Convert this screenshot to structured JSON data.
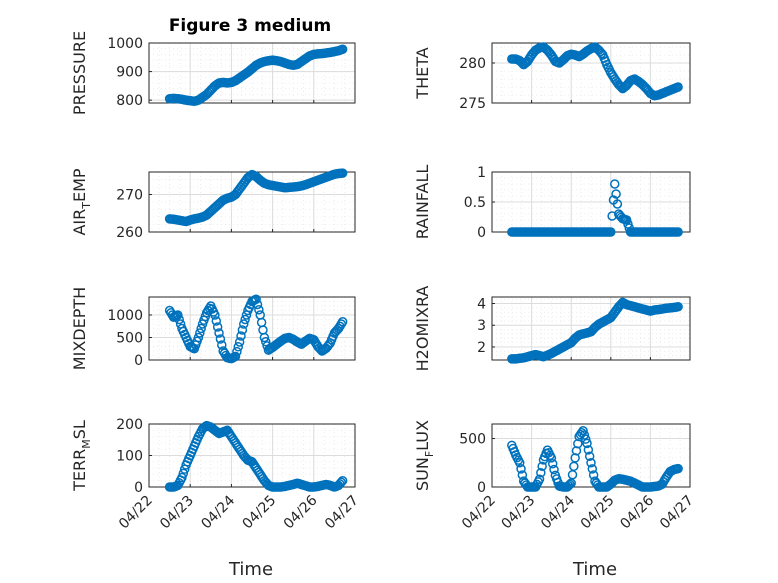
{
  "figure": {
    "title": "Figure 3 medium",
    "xlabel": "Time",
    "x_ticks": [
      "04/22",
      "04/23",
      "04/24",
      "04/25",
      "04/26",
      "04/27"
    ],
    "marker_color": "#0072BD"
  },
  "chart_data": [
    {
      "type": "scatter",
      "id": "pressure",
      "ylabel": "PRESSURE",
      "ylabel_parts": [
        {
          "t": "PRESSURE",
          "sub": false
        }
      ],
      "ylim": [
        790,
        1000
      ],
      "yticks": [
        800,
        900,
        1000
      ],
      "x": [
        0.5,
        0.6,
        0.7,
        0.8,
        0.9,
        1.0,
        1.1,
        1.2,
        1.3,
        1.4,
        1.5,
        1.6,
        1.7,
        1.8,
        1.9,
        2.0,
        2.1,
        2.2,
        2.3,
        2.4,
        2.5,
        2.6,
        2.7,
        2.8,
        2.9,
        3.0,
        3.1,
        3.2,
        3.3,
        3.4,
        3.5,
        3.6,
        3.7,
        3.8,
        3.9,
        4.0,
        4.1,
        4.2,
        4.3,
        4.4,
        4.5,
        4.6,
        4.7
      ],
      "y": [
        805,
        806,
        805,
        803,
        800,
        798,
        796,
        800,
        810,
        820,
        835,
        850,
        860,
        862,
        860,
        862,
        868,
        878,
        888,
        898,
        910,
        922,
        930,
        935,
        938,
        940,
        938,
        935,
        930,
        925,
        922,
        925,
        935,
        945,
        955,
        960,
        962,
        963,
        965,
        967,
        970,
        973,
        978
      ]
    },
    {
      "type": "scatter",
      "id": "theta",
      "ylabel": "THETA",
      "ylabel_parts": [
        {
          "t": "THETA",
          "sub": false
        }
      ],
      "ylim": [
        275,
        282.5
      ],
      "yticks": [
        275,
        280
      ],
      "x": [
        0.5,
        0.6,
        0.7,
        0.8,
        0.9,
        1.0,
        1.1,
        1.2,
        1.3,
        1.4,
        1.5,
        1.6,
        1.7,
        1.8,
        1.9,
        2.0,
        2.1,
        2.2,
        2.3,
        2.4,
        2.5,
        2.6,
        2.7,
        2.8,
        2.9,
        3.0,
        3.1,
        3.2,
        3.3,
        3.4,
        3.5,
        3.6,
        3.7,
        3.8,
        3.9,
        4.0,
        4.1,
        4.2,
        4.3,
        4.4,
        4.5,
        4.6,
        4.7
      ],
      "y": [
        280.5,
        280.5,
        280.3,
        279.8,
        280.2,
        281.0,
        281.6,
        281.9,
        282.0,
        281.6,
        281.0,
        280.2,
        280.0,
        280.4,
        280.9,
        281.1,
        281.0,
        280.8,
        281.1,
        281.5,
        281.8,
        282.0,
        281.6,
        281.0,
        279.8,
        278.8,
        278.0,
        277.3,
        276.8,
        277.2,
        277.8,
        278.0,
        277.7,
        277.3,
        276.8,
        276.2,
        275.9,
        276.0,
        276.2,
        276.4,
        276.6,
        276.8,
        277.0
      ]
    },
    {
      "type": "scatter",
      "id": "airtemp",
      "ylabel": "AIR_TEMP",
      "ylabel_parts": [
        {
          "t": "AIR",
          "sub": false
        },
        {
          "t": "T",
          "sub": true
        },
        {
          "t": "EMP",
          "sub": false
        }
      ],
      "ylim": [
        260,
        276
      ],
      "yticks": [
        260,
        270
      ],
      "x": [
        0.5,
        0.6,
        0.7,
        0.8,
        0.9,
        1.0,
        1.1,
        1.2,
        1.3,
        1.4,
        1.5,
        1.6,
        1.7,
        1.8,
        1.9,
        2.0,
        2.1,
        2.2,
        2.3,
        2.4,
        2.5,
        2.6,
        2.7,
        2.8,
        2.9,
        3.0,
        3.1,
        3.2,
        3.3,
        3.4,
        3.5,
        3.6,
        3.7,
        3.8,
        3.9,
        4.0,
        4.1,
        4.2,
        4.3,
        4.4,
        4.5,
        4.6,
        4.7
      ],
      "y": [
        263.5,
        263.4,
        263.2,
        263.0,
        262.8,
        263.2,
        263.5,
        263.7,
        264.0,
        264.5,
        265.5,
        266.5,
        267.5,
        268.5,
        269.0,
        269.3,
        270.0,
        271.5,
        273.0,
        274.5,
        275.3,
        274.8,
        273.8,
        273.0,
        272.6,
        272.4,
        272.2,
        272.0,
        271.8,
        271.9,
        272.0,
        272.1,
        272.3,
        272.6,
        273.0,
        273.4,
        273.8,
        274.2,
        274.6,
        275.0,
        275.4,
        275.6,
        275.7
      ]
    },
    {
      "type": "scatter",
      "id": "rainfall",
      "ylabel": "RAINFALL",
      "ylabel_parts": [
        {
          "t": "RAINFALL",
          "sub": false
        }
      ],
      "ylim": [
        0,
        1
      ],
      "yticks": [
        0,
        0.5,
        1
      ],
      "ytick_labels": [
        "0",
        "0.5",
        "1"
      ],
      "x": [
        0.5,
        0.6,
        0.7,
        0.8,
        0.9,
        1.0,
        1.1,
        1.2,
        1.3,
        1.4,
        1.5,
        1.6,
        1.7,
        1.8,
        1.9,
        2.0,
        2.1,
        2.2,
        2.3,
        2.4,
        2.5,
        2.6,
        2.7,
        2.8,
        2.9,
        3.0,
        3.1,
        3.2,
        3.3,
        3.4,
        3.5,
        3.6,
        3.7,
        3.8,
        3.9,
        4.0,
        4.1,
        4.2,
        4.3,
        4.4,
        4.5,
        4.6,
        4.7
      ],
      "y": [
        0,
        0,
        0,
        0,
        0,
        0,
        0,
        0,
        0,
        0,
        0,
        0,
        0,
        0,
        0,
        0,
        0,
        0,
        0,
        0,
        0,
        0,
        0,
        0,
        0,
        0,
        0.8,
        0.3,
        0.22,
        0.2,
        0,
        0,
        0,
        0,
        0,
        0,
        0,
        0,
        0,
        0,
        0,
        0,
        0
      ]
    },
    {
      "type": "scatter",
      "id": "mixdepth",
      "ylabel": "MIXDEPTH",
      "ylabel_parts": [
        {
          "t": "MIXDEPTH",
          "sub": false
        }
      ],
      "ylim": [
        0,
        1400
      ],
      "yticks": [
        0,
        500,
        1000
      ],
      "x": [
        0.5,
        0.6,
        0.7,
        0.8,
        0.9,
        1.0,
        1.1,
        1.2,
        1.3,
        1.4,
        1.5,
        1.6,
        1.7,
        1.8,
        1.9,
        2.0,
        2.1,
        2.2,
        2.3,
        2.4,
        2.5,
        2.6,
        2.7,
        2.8,
        2.9,
        3.0,
        3.1,
        3.2,
        3.3,
        3.4,
        3.5,
        3.6,
        3.7,
        3.8,
        3.9,
        4.0,
        4.1,
        4.2,
        4.3,
        4.4,
        4.5,
        4.6,
        4.7
      ],
      "y": [
        1100,
        950,
        1000,
        700,
        500,
        300,
        250,
        500,
        800,
        1050,
        1200,
        1000,
        600,
        200,
        50,
        30,
        80,
        400,
        800,
        1100,
        1300,
        1350,
        1000,
        500,
        220,
        280,
        350,
        420,
        480,
        500,
        460,
        400,
        350,
        420,
        480,
        450,
        300,
        200,
        260,
        380,
        600,
        700,
        850
      ]
    },
    {
      "type": "scatter",
      "id": "h2omixra",
      "ylabel": "H2OMIXRA",
      "ylabel_parts": [
        {
          "t": "H2OMIXRA",
          "sub": false
        }
      ],
      "ylim": [
        1.4,
        4.3
      ],
      "yticks": [
        2,
        3,
        4
      ],
      "x": [
        0.5,
        0.6,
        0.7,
        0.8,
        0.9,
        1.0,
        1.1,
        1.2,
        1.3,
        1.4,
        1.5,
        1.6,
        1.7,
        1.8,
        1.9,
        2.0,
        2.1,
        2.2,
        2.3,
        2.4,
        2.5,
        2.6,
        2.7,
        2.8,
        2.9,
        3.0,
        3.1,
        3.2,
        3.3,
        3.4,
        3.5,
        3.6,
        3.7,
        3.8,
        3.9,
        4.0,
        4.1,
        4.2,
        4.3,
        4.4,
        4.5,
        4.6,
        4.7
      ],
      "y": [
        1.45,
        1.45,
        1.48,
        1.5,
        1.55,
        1.6,
        1.65,
        1.6,
        1.55,
        1.62,
        1.7,
        1.8,
        1.9,
        2.0,
        2.1,
        2.2,
        2.4,
        2.55,
        2.6,
        2.65,
        2.7,
        2.9,
        3.05,
        3.15,
        3.25,
        3.35,
        3.6,
        3.85,
        4.05,
        3.95,
        3.9,
        3.85,
        3.8,
        3.75,
        3.7,
        3.65,
        3.7,
        3.72,
        3.75,
        3.78,
        3.8,
        3.82,
        3.85
      ]
    },
    {
      "type": "scatter",
      "id": "terrmsl",
      "ylabel": "TERR_MSL",
      "ylabel_parts": [
        {
          "t": "TERR",
          "sub": false
        },
        {
          "t": "M",
          "sub": true
        },
        {
          "t": "SL",
          "sub": false
        }
      ],
      "ylim": [
        0,
        200
      ],
      "yticks": [
        0,
        100,
        200
      ],
      "x": [
        0.5,
        0.6,
        0.7,
        0.8,
        0.9,
        1.0,
        1.1,
        1.2,
        1.3,
        1.4,
        1.5,
        1.6,
        1.7,
        1.8,
        1.9,
        2.0,
        2.1,
        2.2,
        2.3,
        2.4,
        2.5,
        2.6,
        2.7,
        2.8,
        2.9,
        3.0,
        3.1,
        3.2,
        3.3,
        3.4,
        3.5,
        3.6,
        3.7,
        3.8,
        3.9,
        4.0,
        4.1,
        4.2,
        4.3,
        4.4,
        4.5,
        4.6,
        4.7
      ],
      "y": [
        0,
        0,
        5,
        30,
        70,
        100,
        130,
        160,
        185,
        195,
        190,
        180,
        170,
        175,
        180,
        160,
        140,
        120,
        100,
        85,
        80,
        60,
        40,
        20,
        5,
        0,
        0,
        0,
        2,
        5,
        8,
        12,
        8,
        4,
        0,
        0,
        2,
        5,
        8,
        5,
        0,
        5,
        20
      ]
    },
    {
      "type": "scatter",
      "id": "sunflux",
      "ylabel": "SUN_FLUX",
      "ylabel_parts": [
        {
          "t": "SUN",
          "sub": false
        },
        {
          "t": "F",
          "sub": true
        },
        {
          "t": "LUX",
          "sub": false
        }
      ],
      "ylim": [
        0,
        650
      ],
      "yticks": [
        0,
        500
      ],
      "x": [
        0.5,
        0.6,
        0.7,
        0.8,
        0.9,
        1.0,
        1.1,
        1.2,
        1.3,
        1.4,
        1.5,
        1.6,
        1.7,
        1.8,
        1.9,
        2.0,
        2.1,
        2.2,
        2.3,
        2.4,
        2.5,
        2.6,
        2.7,
        2.8,
        2.9,
        3.0,
        3.1,
        3.2,
        3.3,
        3.4,
        3.5,
        3.6,
        3.7,
        3.8,
        3.9,
        4.0,
        4.1,
        4.2,
        4.3,
        4.4,
        4.5,
        4.6,
        4.7
      ],
      "y": [
        430,
        330,
        250,
        60,
        0,
        0,
        0,
        80,
        280,
        380,
        300,
        120,
        10,
        0,
        0,
        40,
        300,
        520,
        580,
        450,
        250,
        60,
        0,
        0,
        0,
        30,
        70,
        85,
        80,
        70,
        60,
        40,
        20,
        0,
        0,
        0,
        5,
        10,
        30,
        100,
        160,
        180,
        190
      ]
    }
  ]
}
